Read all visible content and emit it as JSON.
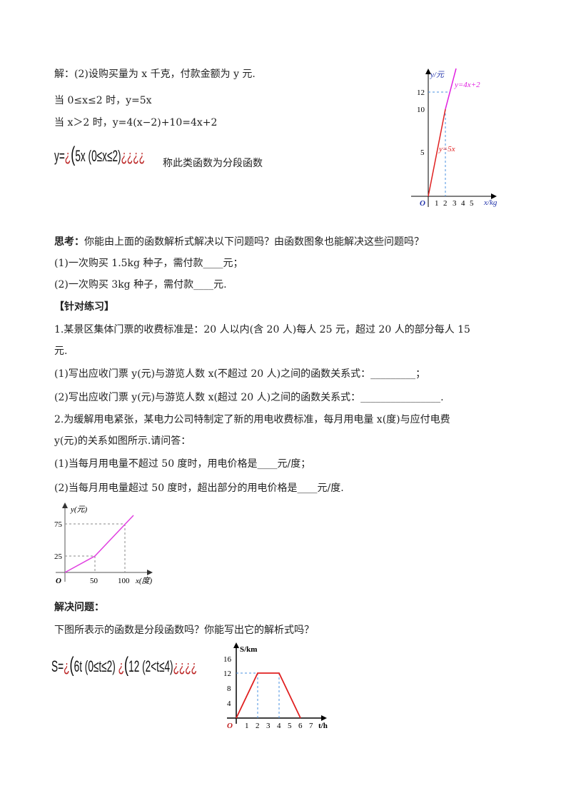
{
  "solution": {
    "line1": "解：(2)设购买量为 x 千克，付款金额为 y 元.",
    "line2": "当 0≤x≤2 时，y=5x",
    "line3": "当 x＞2 时，y=4(x−2)+10=4x+2",
    "formula_prefix": "y=",
    "formula_glitch1": "¿",
    "formula_body": "5x  (0≤x≤2)",
    "formula_glitch2": "¿¿¿¿",
    "note": "称此类函数为分段函数"
  },
  "graph1": {
    "y_label": "y/元",
    "x_label": "x/kg",
    "origin": "O",
    "y_ticks": [
      "5",
      "10",
      "12"
    ],
    "x_ticks": [
      "1",
      "2",
      "3",
      "4",
      "5"
    ],
    "line1_label": "y=5x",
    "line2_label": "y=4x+2",
    "colors": {
      "line1": "#e02020",
      "line2": "#e020e0",
      "axis_label": "#2233aa",
      "guide": "#4a90e2"
    }
  },
  "think": {
    "title": "思考：",
    "question": "你能由上面的函数解析式解决以下问题吗？由函数图象也能解决这些问题吗？",
    "q1": "(1)一次购买 1.5kg 种子，需付款____元；",
    "q2": "(2)一次购买 3kg 种子，需付款____元."
  },
  "practice": {
    "title": "【针对练习】",
    "p1_line1": "1.某景区集体门票的收费标准是：20 人以内(含 20 人)每人 25 元，超过 20 人的部分每人 15",
    "p1_line2": "元.",
    "p1_q1": "(1)写出应收门票 y(元)与游览人数 x(不超过 20 人)之间的函数关系式：_________；",
    "p1_q2": "(2)写出应收门票 y(元)与游览人数 x(超过 20 人)之间的函数关系式：________________.",
    "p2_line1": "2.为缓解用电紧张，某电力公司特制定了新的用电收费标准，每月用电量 x(度)与应付电费",
    "p2_line2": "y(元)的关系如图所示.请问答：",
    "p2_q1": "(1)当每月用电量不超过 50 度时，用电价格是____元/度；",
    "p2_q2": "(2)当每月用电量超过 50 度时，超出部分的用电价格是____元/度."
  },
  "graph2": {
    "y_label": "y(元)",
    "x_label": "x(度)",
    "origin": "O",
    "y_ticks": [
      "25",
      "75"
    ],
    "x_ticks": [
      "50",
      "100"
    ],
    "color": "#e040e0"
  },
  "solve": {
    "title": "解决问题：",
    "question": "下图所表示的函数是分段函数吗？你能写出它的解析式吗？",
    "formula_prefix": "S=",
    "formula_glitch1": "¿",
    "formula_part1": "6t  (0≤t≤2)",
    "formula_glitch2": "¿",
    "formula_part2": "12  (2<t≤4)",
    "formula_glitch3": "¿¿¿¿"
  },
  "graph3": {
    "y_label": "S/km",
    "x_label": "t/h",
    "origin": "O",
    "y_ticks": [
      "4",
      "8",
      "12",
      "16"
    ],
    "x_ticks": [
      "1",
      "2",
      "3",
      "4",
      "5",
      "6",
      "7"
    ],
    "color": "#e02020"
  }
}
